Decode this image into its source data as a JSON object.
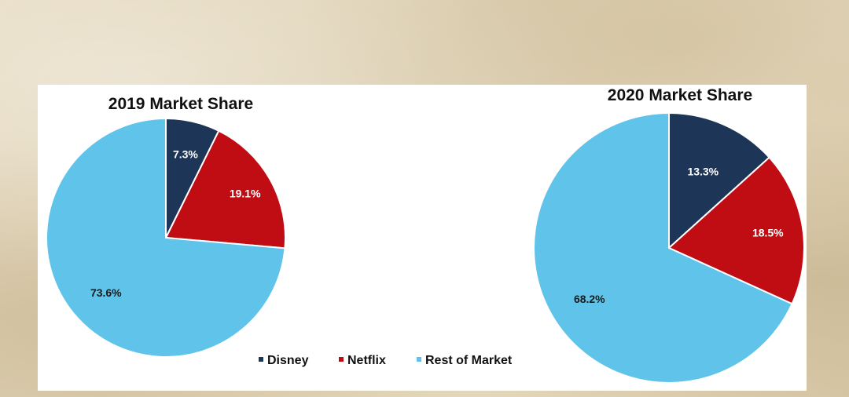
{
  "legend": [
    {
      "name": "Disney",
      "color": "#1d3557"
    },
    {
      "name": "Netflix",
      "color": "#c00d14"
    },
    {
      "name": "Rest of Market",
      "color": "#5fc3ea"
    }
  ],
  "chart_data": [
    {
      "type": "pie",
      "title": "2019 Market Share",
      "categories": [
        "Disney",
        "Netflix",
        "Rest of Market"
      ],
      "values": [
        7.3,
        19.1,
        73.6
      ],
      "labels": [
        "7.3%",
        "19.1%",
        "73.6%"
      ],
      "colors": [
        "#1d3557",
        "#c00d14",
        "#5fc3ea"
      ],
      "start_angle": "12 o'clock",
      "direction": "clockwise",
      "legend_position": "bottom"
    },
    {
      "type": "pie",
      "title": "2020 Market Share",
      "categories": [
        "Disney",
        "Netflix",
        "Rest of Market"
      ],
      "values": [
        13.3,
        18.5,
        68.2
      ],
      "labels": [
        "13.3%",
        "18.5%",
        "68.2%"
      ],
      "colors": [
        "#1d3557",
        "#c00d14",
        "#5fc3ea"
      ],
      "start_angle": "12 o'clock",
      "direction": "clockwise",
      "legend_position": "bottom"
    }
  ]
}
